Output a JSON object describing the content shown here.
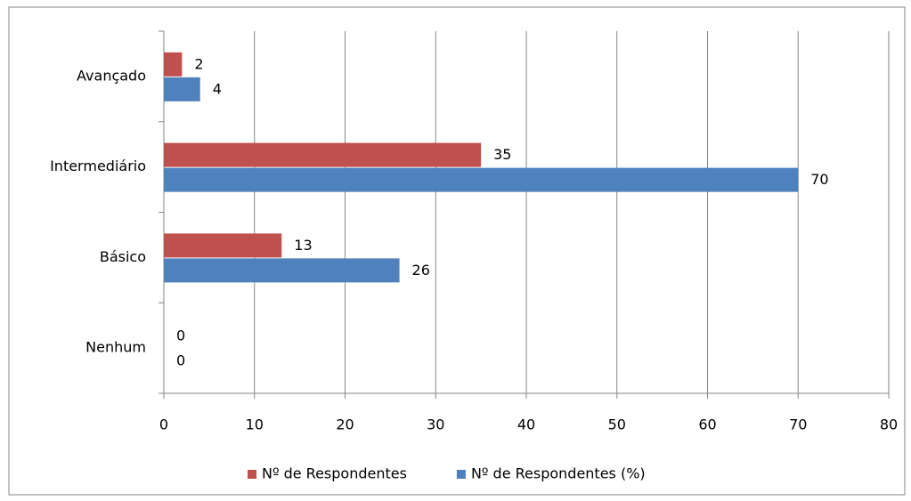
{
  "chart_data": {
    "type": "hbar",
    "categories": [
      "Avançado",
      "Intermediário",
      "Básico",
      "Nenhum"
    ],
    "series": [
      {
        "name": "Nº de Respondentes",
        "color": "#c0504d",
        "values": [
          2,
          35,
          13,
          0
        ]
      },
      {
        "name": "Nº de Respondentes (%)",
        "color": "#4f81bd",
        "values": [
          4,
          70,
          26,
          0
        ]
      }
    ],
    "xlim": [
      0,
      80
    ],
    "xticks": [
      0,
      10,
      20,
      30,
      40,
      50,
      60,
      70,
      80
    ],
    "grid": true,
    "legend": "bottom"
  }
}
